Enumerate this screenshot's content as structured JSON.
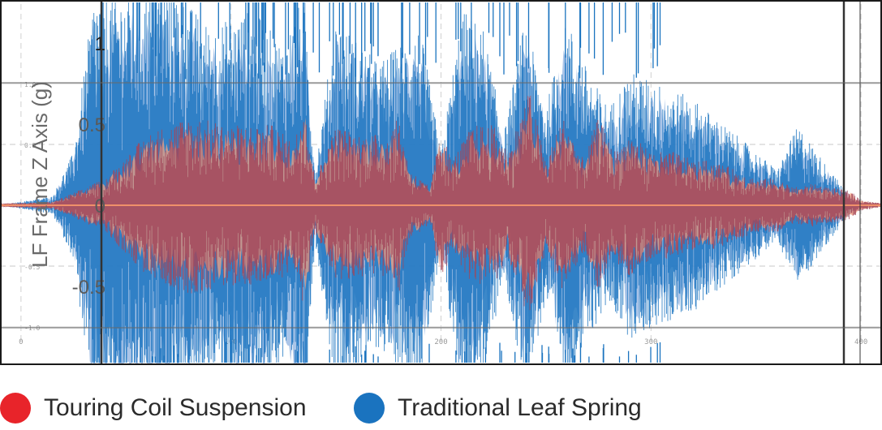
{
  "chart_data": {
    "type": "line",
    "ylabel": "LF Frame Z Axis (g)",
    "xlabel": "",
    "xlim": [
      -10,
      410
    ],
    "ylim": [
      -1.5,
      1.5
    ],
    "y_ticks": [
      {
        "value": 1,
        "label": "1"
      },
      {
        "value": 0.5,
        "label": "0.5"
      },
      {
        "value": 0,
        "label": "0"
      },
      {
        "value": -0.5,
        "label": "-0.5"
      }
    ],
    "bg_y_ticks": [
      {
        "value": 1.0,
        "label": "1.0"
      },
      {
        "value": 0.5,
        "label": "0.5"
      },
      {
        "value": 0.0,
        "label": "0.0"
      },
      {
        "value": -0.5,
        "label": "-0.5"
      },
      {
        "value": -1.0,
        "label": "-1.0"
      }
    ],
    "x_ticks": [
      {
        "value": 0,
        "label": "0"
      },
      {
        "value": 100,
        "label": "100"
      },
      {
        "value": 200,
        "label": "200"
      },
      {
        "value": 300,
        "label": "300"
      },
      {
        "value": 400,
        "label": "400"
      }
    ],
    "grid": true,
    "legend_position": "bottom",
    "series": [
      {
        "name": "Touring Coil Suspension",
        "color": "#e8242a",
        "amplitude_envelope": {
          "x": [
            -10,
            15,
            25,
            40,
            60,
            80,
            100,
            120,
            130,
            135,
            140,
            150,
            160,
            175,
            180,
            185,
            195,
            200,
            205,
            215,
            225,
            232,
            242,
            250,
            258,
            268,
            275,
            282,
            290,
            300,
            312,
            320,
            330,
            340,
            350,
            360,
            368,
            377,
            385,
            395,
            400,
            410
          ],
          "y": [
            0.01,
            0.02,
            0.07,
            0.15,
            0.4,
            0.5,
            0.45,
            0.45,
            0.35,
            0.6,
            0.15,
            0.45,
            0.4,
            0.4,
            0.5,
            0.2,
            0.1,
            0.45,
            0.25,
            0.45,
            0.45,
            0.3,
            0.65,
            0.25,
            0.5,
            0.25,
            0.5,
            0.3,
            0.4,
            0.3,
            0.3,
            0.25,
            0.25,
            0.2,
            0.15,
            0.15,
            0.1,
            0.12,
            0.1,
            0.08,
            0.03,
            0.01
          ]
        }
      },
      {
        "name": "Traditional Leaf Spring",
        "color": "#1a73bf",
        "amplitude_envelope": {
          "x": [
            -10,
            15,
            25,
            35,
            50,
            70,
            90,
            110,
            125,
            135,
            140,
            150,
            170,
            190,
            200,
            210,
            220,
            230,
            240,
            250,
            260,
            270,
            280,
            290,
            300,
            320,
            340,
            360,
            370,
            385,
            395,
            400,
            410
          ],
          "y": [
            0.0,
            0.05,
            0.3,
            1.2,
            1.2,
            1.25,
            1.0,
            1.1,
            0.9,
            1.2,
            0.2,
            1.05,
            0.8,
            1.0,
            0.3,
            1.1,
            1.0,
            0.4,
            1.05,
            0.55,
            1.05,
            0.75,
            0.55,
            0.75,
            0.7,
            0.6,
            0.4,
            0.2,
            0.45,
            0.2,
            0.05,
            0.0,
            0.0
          ]
        }
      }
    ]
  },
  "legend": {
    "items": [
      {
        "label": "Touring Coil Suspension",
        "color": "#e8242a"
      },
      {
        "label": "Traditional Leaf Spring",
        "color": "#1a73bf"
      }
    ]
  }
}
